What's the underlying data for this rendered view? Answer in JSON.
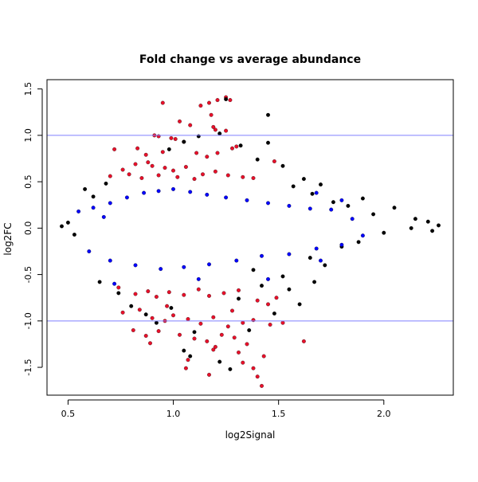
{
  "chart_data": {
    "type": "scatter",
    "title": "Fold change vs average abundance",
    "xlabel": "log2Signal",
    "ylabel": "log2FC",
    "xlim": [
      0.4,
      2.33
    ],
    "ylim": [
      -1.8,
      1.6
    ],
    "x_ticks": [
      0.5,
      1.0,
      1.5,
      2.0
    ],
    "x_tick_labels": [
      "0.5",
      "1.0",
      "1.5",
      "2.0"
    ],
    "y_ticks": [
      -1.5,
      -1.0,
      -0.5,
      0.0,
      0.5,
      1.0,
      1.5
    ],
    "y_tick_labels": [
      "-1.5",
      "-1.0",
      "-0.5",
      "0.0",
      "0.5",
      "1.0",
      "1.5"
    ],
    "grid": false,
    "legend": "none",
    "reference_lines": [
      {
        "axis": "y",
        "value": 1.0,
        "color": "#7f7fff"
      },
      {
        "axis": "y",
        "value": -1.0,
        "color": "#7f7fff"
      }
    ],
    "colors": {
      "black": "#000000",
      "blue": "#0000ff",
      "red": "#e8102a"
    },
    "series": [
      {
        "color": "#e8102a",
        "points": [
          [
            0.95,
            1.35
          ],
          [
            1.21,
            1.38
          ],
          [
            1.25,
            1.41
          ],
          [
            1.27,
            1.38
          ],
          [
            1.17,
            1.35
          ],
          [
            1.13,
            1.32
          ],
          [
            1.18,
            1.22
          ],
          [
            1.03,
            1.15
          ],
          [
            1.08,
            1.11
          ],
          [
            1.19,
            1.09
          ],
          [
            1.2,
            1.06
          ],
          [
            1.25,
            1.05
          ],
          [
            0.91,
            1.0
          ],
          [
            0.93,
            0.99
          ],
          [
            0.99,
            0.97
          ],
          [
            1.01,
            0.96
          ],
          [
            1.05,
            0.93
          ],
          [
            0.72,
            0.85
          ],
          [
            0.83,
            0.86
          ],
          [
            0.87,
            0.79
          ],
          [
            0.95,
            0.82
          ],
          [
            1.11,
            0.81
          ],
          [
            1.16,
            0.77
          ],
          [
            1.21,
            0.81
          ],
          [
            1.28,
            0.86
          ],
          [
            1.3,
            0.88
          ],
          [
            1.48,
            0.72
          ],
          [
            0.76,
            0.63
          ],
          [
            0.82,
            0.69
          ],
          [
            0.88,
            0.71
          ],
          [
            0.9,
            0.67
          ],
          [
            0.96,
            0.65
          ],
          [
            1.0,
            0.62
          ],
          [
            1.06,
            0.66
          ],
          [
            1.14,
            0.58
          ],
          [
            1.2,
            0.61
          ],
          [
            1.26,
            0.57
          ],
          [
            1.33,
            0.55
          ],
          [
            1.38,
            0.54
          ],
          [
            0.7,
            0.56
          ],
          [
            0.79,
            0.58
          ],
          [
            0.85,
            0.54
          ],
          [
            0.93,
            0.57
          ],
          [
            1.02,
            0.55
          ],
          [
            1.1,
            0.53
          ],
          [
            0.74,
            -0.64
          ],
          [
            0.82,
            -0.71
          ],
          [
            0.88,
            -0.68
          ],
          [
            0.92,
            -0.74
          ],
          [
            0.98,
            -0.69
          ],
          [
            1.05,
            -0.72
          ],
          [
            1.12,
            -0.66
          ],
          [
            1.17,
            -0.73
          ],
          [
            1.24,
            -0.7
          ],
          [
            1.31,
            -0.67
          ],
          [
            1.4,
            -0.78
          ],
          [
            1.45,
            -0.82
          ],
          [
            1.49,
            -0.75
          ],
          [
            0.76,
            -0.91
          ],
          [
            0.84,
            -0.88
          ],
          [
            0.9,
            -0.97
          ],
          [
            0.96,
            -1.0
          ],
          [
            1.0,
            -0.94
          ],
          [
            1.07,
            -0.98
          ],
          [
            1.13,
            -1.03
          ],
          [
            1.19,
            -0.96
          ],
          [
            1.26,
            -1.06
          ],
          [
            1.33,
            -1.02
          ],
          [
            1.38,
            -0.99
          ],
          [
            1.46,
            -1.04
          ],
          [
            0.81,
            -1.1
          ],
          [
            0.87,
            -1.16
          ],
          [
            0.93,
            -1.11
          ],
          [
            1.03,
            -1.15
          ],
          [
            1.1,
            -1.19
          ],
          [
            1.16,
            -1.22
          ],
          [
            1.23,
            -1.15
          ],
          [
            1.29,
            -1.18
          ],
          [
            1.35,
            -1.25
          ],
          [
            1.62,
            -1.22
          ],
          [
            0.89,
            -1.24
          ],
          [
            1.2,
            -1.28
          ],
          [
            1.31,
            -1.34
          ],
          [
            1.43,
            -1.38
          ],
          [
            1.07,
            -1.42
          ],
          [
            1.33,
            -1.45
          ],
          [
            1.38,
            -1.51
          ],
          [
            1.06,
            -1.51
          ],
          [
            1.17,
            -1.58
          ],
          [
            1.4,
            -1.6
          ],
          [
            1.42,
            -1.7
          ],
          [
            1.19,
            -1.31
          ],
          [
            1.52,
            -1.02
          ],
          [
            0.97,
            -0.84
          ],
          [
            1.28,
            -0.89
          ]
        ]
      },
      {
        "color": "#000000",
        "points": [
          [
            1.25,
            1.39
          ],
          [
            1.45,
            1.22
          ],
          [
            1.22,
            1.02
          ],
          [
            1.05,
            0.93
          ],
          [
            0.98,
            0.85
          ],
          [
            1.32,
            0.89
          ],
          [
            1.4,
            0.74
          ],
          [
            1.52,
            0.67
          ],
          [
            1.62,
            0.53
          ],
          [
            1.7,
            0.47
          ],
          [
            0.68,
            0.48
          ],
          [
            1.57,
            0.45
          ],
          [
            1.66,
            0.37
          ],
          [
            1.9,
            0.32
          ],
          [
            2.05,
            0.22
          ],
          [
            2.15,
            0.1
          ],
          [
            2.21,
            0.07
          ],
          [
            2.26,
            0.03
          ],
          [
            2.23,
            -0.03
          ],
          [
            2.13,
            0.0
          ],
          [
            0.47,
            0.02
          ],
          [
            0.5,
            0.06
          ],
          [
            0.53,
            -0.07
          ],
          [
            1.45,
            0.92
          ],
          [
            1.12,
            0.99
          ],
          [
            1.65,
            -0.32
          ],
          [
            1.72,
            -0.4
          ],
          [
            1.8,
            -0.2
          ],
          [
            1.88,
            -0.15
          ],
          [
            2.0,
            -0.05
          ],
          [
            1.38,
            -0.45
          ],
          [
            0.65,
            -0.58
          ],
          [
            0.74,
            -0.7
          ],
          [
            0.92,
            -1.02
          ],
          [
            1.05,
            -1.32
          ],
          [
            1.22,
            -1.44
          ],
          [
            1.27,
            -1.52
          ],
          [
            1.08,
            -1.38
          ],
          [
            1.36,
            -1.1
          ],
          [
            1.48,
            -0.92
          ],
          [
            1.55,
            -0.66
          ],
          [
            1.67,
            -0.58
          ],
          [
            1.6,
            -0.82
          ],
          [
            0.8,
            -0.84
          ],
          [
            0.87,
            -0.93
          ],
          [
            0.58,
            0.42
          ],
          [
            0.62,
            0.34
          ],
          [
            1.76,
            0.28
          ],
          [
            1.83,
            0.24
          ],
          [
            1.95,
            0.15
          ],
          [
            1.1,
            -1.12
          ],
          [
            0.99,
            -0.86
          ],
          [
            1.31,
            -0.76
          ],
          [
            1.42,
            -0.62
          ],
          [
            1.52,
            -0.52
          ]
        ]
      },
      {
        "color": "#0000ff",
        "points": [
          [
            0.55,
            0.18
          ],
          [
            0.62,
            0.22
          ],
          [
            0.7,
            0.27
          ],
          [
            0.78,
            0.33
          ],
          [
            0.86,
            0.38
          ],
          [
            0.93,
            0.4
          ],
          [
            1.0,
            0.42
          ],
          [
            1.08,
            0.39
          ],
          [
            1.16,
            0.36
          ],
          [
            1.25,
            0.33
          ],
          [
            1.35,
            0.3
          ],
          [
            1.45,
            0.27
          ],
          [
            1.55,
            0.24
          ],
          [
            1.65,
            0.21
          ],
          [
            1.75,
            0.2
          ],
          [
            1.8,
            0.3
          ],
          [
            1.68,
            0.38
          ],
          [
            0.6,
            -0.25
          ],
          [
            0.7,
            -0.35
          ],
          [
            0.82,
            -0.4
          ],
          [
            0.94,
            -0.44
          ],
          [
            1.05,
            -0.42
          ],
          [
            1.17,
            -0.39
          ],
          [
            1.3,
            -0.35
          ],
          [
            1.42,
            -0.3
          ],
          [
            1.55,
            -0.28
          ],
          [
            1.68,
            -0.22
          ],
          [
            1.8,
            -0.18
          ],
          [
            0.72,
            -0.6
          ],
          [
            1.45,
            -0.55
          ],
          [
            1.7,
            -0.35
          ],
          [
            1.85,
            0.1
          ],
          [
            1.9,
            -0.08
          ],
          [
            0.67,
            0.12
          ],
          [
            1.12,
            -0.55
          ]
        ]
      }
    ]
  }
}
